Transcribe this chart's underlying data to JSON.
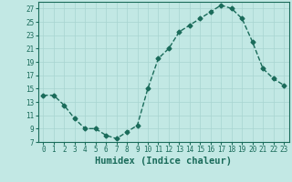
{
  "x": [
    0,
    1,
    2,
    3,
    4,
    5,
    6,
    7,
    8,
    9,
    10,
    11,
    12,
    13,
    14,
    15,
    16,
    17,
    18,
    19,
    20,
    21,
    22,
    23
  ],
  "y": [
    14,
    14,
    12.5,
    10.5,
    9,
    9,
    8,
    7.5,
    8.5,
    9.5,
    15,
    19.5,
    21,
    23.5,
    24.5,
    25.5,
    26.5,
    27.5,
    27,
    25.5,
    22,
    18,
    16.5,
    15.5
  ],
  "line_color": "#1a6b5a",
  "marker": "D",
  "marker_size": 2.5,
  "bg_color": "#c2e8e4",
  "grid_color": "#a8d4d0",
  "xlabel": "Humidex (Indice chaleur)",
  "xlabel_fontsize": 7.5,
  "xlim": [
    -0.5,
    23.5
  ],
  "ylim": [
    7,
    28
  ],
  "yticks": [
    7,
    9,
    11,
    13,
    15,
    17,
    19,
    21,
    23,
    25,
    27
  ],
  "xticks": [
    0,
    1,
    2,
    3,
    4,
    5,
    6,
    7,
    8,
    9,
    10,
    11,
    12,
    13,
    14,
    15,
    16,
    17,
    18,
    19,
    20,
    21,
    22,
    23
  ],
  "tick_color": "#1a6b5a",
  "tick_fontsize": 5.5,
  "axis_color": "#1a6b5a",
  "linewidth": 1.0
}
